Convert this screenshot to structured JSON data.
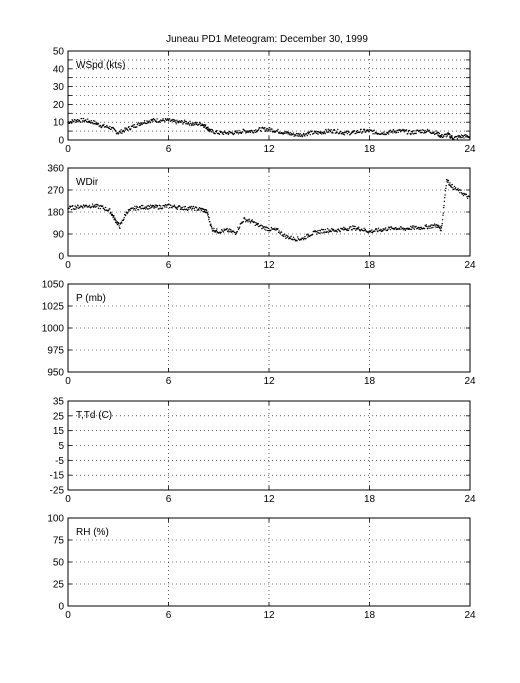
{
  "title": "Juneau PD1 Meteogram:   December 30, 1999",
  "x_ticks": [
    "0",
    "6",
    "12",
    "18",
    "24"
  ],
  "chart_data": [
    {
      "type": "scatter",
      "panel_label": "WSpd (kts)",
      "xlim": [
        0,
        24
      ],
      "ylim": [
        0,
        50
      ],
      "x_ticks": [
        0,
        6,
        12,
        18,
        24
      ],
      "y_ticks": [
        0,
        5,
        10,
        15,
        20,
        25,
        30,
        35,
        40,
        45,
        50
      ],
      "y_tick_labels": [
        "0",
        "10",
        "20",
        "30",
        "40",
        "50"
      ],
      "grid": true,
      "series": [
        {
          "x": [
            0,
            0.5,
            1,
            1.5,
            2,
            2.5,
            3,
            3.5,
            4,
            4.5,
            5,
            5.5,
            6,
            6.5,
            7,
            7.5,
            8,
            8.3,
            8.5,
            9,
            9.5,
            10,
            10.5,
            11,
            11.5,
            12,
            12.5,
            13,
            13.5,
            14,
            14.5,
            15,
            15.5,
            16,
            16.5,
            17,
            17.5,
            18,
            18.5,
            19,
            19.5,
            20,
            20.5,
            21,
            21.5,
            22,
            22.3,
            22.7,
            23,
            23.5,
            24
          ],
          "y": [
            10,
            11,
            11,
            10,
            8,
            7,
            4,
            6,
            8,
            10,
            11,
            11,
            11,
            10,
            10,
            9,
            9,
            7,
            5,
            4,
            4,
            4,
            5,
            5,
            6,
            6,
            5,
            4,
            3,
            3,
            4,
            4,
            5,
            5,
            4,
            4,
            5,
            5,
            4,
            4,
            5,
            5,
            4,
            5,
            5,
            4,
            2,
            3,
            1,
            2,
            2
          ]
        }
      ]
    },
    {
      "type": "scatter",
      "panel_label": "WDir",
      "xlim": [
        0,
        24
      ],
      "ylim": [
        0,
        360
      ],
      "x_ticks": [
        0,
        6,
        12,
        18,
        24
      ],
      "y_ticks": [
        0,
        90,
        180,
        270,
        360
      ],
      "y_tick_labels": [
        "0",
        "90",
        "180",
        "270",
        "360"
      ],
      "grid": true,
      "series": [
        {
          "x": [
            0,
            0.5,
            1,
            1.5,
            2,
            2.5,
            2.8,
            3.1,
            3.5,
            4,
            4.5,
            5,
            5.5,
            6,
            6.5,
            7,
            7.5,
            8,
            8.3,
            8.6,
            9,
            9.5,
            10,
            10.5,
            11,
            11.5,
            12,
            12.5,
            13,
            13.5,
            14,
            14.5,
            15,
            15.5,
            16,
            16.5,
            17,
            17.5,
            18,
            18.5,
            19,
            19.5,
            20,
            20.5,
            21,
            21.5,
            22,
            22.3,
            22.6,
            23,
            23.5,
            24
          ],
          "y": [
            195,
            200,
            205,
            205,
            200,
            185,
            150,
            120,
            180,
            195,
            200,
            200,
            200,
            205,
            200,
            195,
            195,
            190,
            180,
            110,
            100,
            105,
            95,
            150,
            140,
            120,
            110,
            105,
            80,
            70,
            70,
            90,
            100,
            105,
            105,
            110,
            115,
            110,
            100,
            105,
            110,
            115,
            110,
            115,
            115,
            120,
            125,
            110,
            310,
            280,
            260,
            235
          ]
        }
      ]
    },
    {
      "type": "scatter",
      "panel_label": "P (mb)",
      "xlim": [
        0,
        24
      ],
      "ylim": [
        950,
        1050
      ],
      "x_ticks": [
        0,
        6,
        12,
        18,
        24
      ],
      "y_ticks": [
        950,
        975,
        1000,
        1025,
        1050
      ],
      "y_tick_labels": [
        "950",
        "975",
        "1000",
        "1025",
        "1050"
      ],
      "grid": true,
      "series": []
    },
    {
      "type": "scatter",
      "panel_label": "T,Td (C)",
      "xlim": [
        0,
        24
      ],
      "ylim": [
        -25,
        35
      ],
      "x_ticks": [
        0,
        6,
        12,
        18,
        24
      ],
      "y_ticks": [
        -25,
        -15,
        -5,
        5,
        15,
        25,
        35
      ],
      "y_tick_labels": [
        "-25",
        "-15",
        "-5",
        "5",
        "15",
        "25",
        "35"
      ],
      "grid": true,
      "series": []
    },
    {
      "type": "scatter",
      "panel_label": "RH (%)",
      "xlim": [
        0,
        24
      ],
      "ylim": [
        0,
        100
      ],
      "x_ticks": [
        0,
        6,
        12,
        18,
        24
      ],
      "y_ticks": [
        0,
        25,
        50,
        75,
        100
      ],
      "y_tick_labels": [
        "0",
        "25",
        "50",
        "75",
        "100"
      ],
      "grid": true,
      "series": []
    }
  ]
}
